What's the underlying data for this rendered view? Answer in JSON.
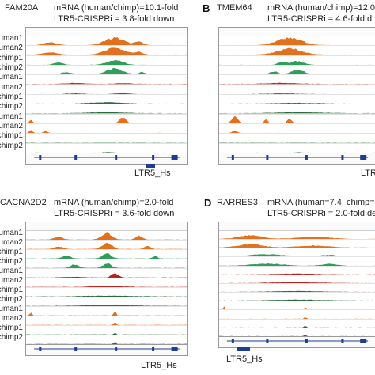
{
  "panels": [
    {
      "id": "A",
      "letter": "",
      "gene": "FAM20A",
      "line1": "mRNA (human/chimp)=10.1-fold",
      "line2": "LTR5-CRISPRi = 3.8-fold down",
      "ltr_label": "LTR5_Hs",
      "row_labels": [
        "uman1",
        "uman2",
        "chimp1",
        "chimp2",
        "uman1",
        "uman2",
        "chimp1",
        "chimp2",
        "uman1",
        "uman2",
        "chimp1",
        "chimp2"
      ]
    },
    {
      "id": "B",
      "letter": "B",
      "gene": "TMEM64",
      "line1": "mRNA (human/chimp)=12.0",
      "line2": "LTR5-CRISPRi = 4.6-fold d",
      "ltr_label": "LTR",
      "row_labels": []
    },
    {
      "id": "C",
      "letter": "",
      "gene": "CACNA2D2",
      "line1": "mRNA (human/chimp)=2.0-fold",
      "line2": "LTR5-CRISPRi = 3.6-fold down",
      "ltr_label": "LTR5_Hs",
      "row_labels": [
        "uman1",
        "uman2",
        "chimp1",
        "chimp2",
        "uman1",
        "uman2",
        "chimp1",
        "chimp2",
        "uman1",
        "uman2",
        "chimp1",
        "chimp2"
      ]
    },
    {
      "id": "D",
      "letter": "D",
      "gene": "RARRES3",
      "line1": "mRNA (human=7.4, chimp=",
      "line2": "LTR5-CRISPRi = 2.0-fold de",
      "ltr_label": "LTR5_Hs",
      "row_labels": []
    }
  ],
  "colors": {
    "orange": "#e3701e",
    "green": "#2f9e5a",
    "red": "#b5241f",
    "dark_green": "#2a6b3c",
    "gene_blue": "#1f3d8f"
  }
}
